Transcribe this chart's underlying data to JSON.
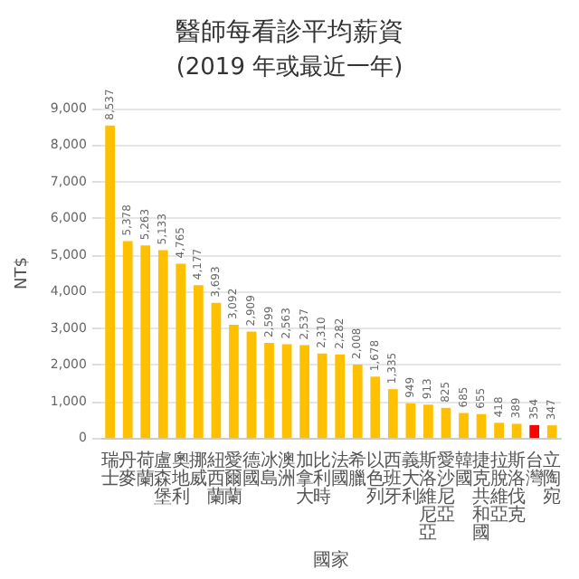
{
  "chart_data": {
    "type": "bar",
    "title": "醫師每看診平均薪資",
    "subtitle": "(2019 年或最近一年)",
    "xlabel": "國家",
    "ylabel": "NT$",
    "categories": [
      "瑞士",
      "丹麥",
      "荷蘭",
      "盧森堡",
      "奧地利",
      "挪威",
      "紐西蘭",
      "愛爾蘭",
      "德國",
      "冰島",
      "澳洲",
      "加拿大",
      "比利時",
      "法國",
      "希臘",
      "以色列",
      "西班牙",
      "義大利",
      "斯洛維尼亞",
      "愛沙尼亞",
      "韓國",
      "捷克共和國",
      "拉脫維亞",
      "斯洛伐克",
      "台灣",
      "立陶宛"
    ],
    "values": [
      8537,
      5378,
      5263,
      5133,
      4765,
      4177,
      3693,
      3092,
      2909,
      2599,
      2563,
      2537,
      2310,
      2282,
      2008,
      1678,
      1335,
      949,
      913,
      825,
      685,
      655,
      418,
      389,
      354,
      347
    ],
    "colors": [
      "#ffc000",
      "#ffc000",
      "#ffc000",
      "#ffc000",
      "#ffc000",
      "#ffc000",
      "#ffc000",
      "#ffc000",
      "#ffc000",
      "#ffc000",
      "#ffc000",
      "#ffc000",
      "#ffc000",
      "#ffc000",
      "#ffc000",
      "#ffc000",
      "#ffc000",
      "#ffc000",
      "#ffc000",
      "#ffc000",
      "#ffc000",
      "#ffc000",
      "#ffc000",
      "#ffc000",
      "#ff0000",
      "#ffc000"
    ],
    "value_labels": [
      "8,537",
      "5,378",
      "5,263",
      "5,133",
      "4,765",
      "4,177",
      "3,693",
      "3,092",
      "2,909",
      "2,599",
      "2,563",
      "2,537",
      "2,310",
      "2,282",
      "2,008",
      "1,678",
      "1,335",
      "949",
      "913",
      "825",
      "685",
      "655",
      "418",
      "389",
      "354",
      "347"
    ],
    "ylim": [
      0,
      9000
    ],
    "yticks": [
      {
        "value": 0,
        "label": "0"
      },
      {
        "value": 1000,
        "label": "1,000"
      },
      {
        "value": 2000,
        "label": "2,000"
      },
      {
        "value": 3000,
        "label": "3,000"
      },
      {
        "value": 4000,
        "label": "4,000"
      },
      {
        "value": 5000,
        "label": "5,000"
      },
      {
        "value": 6000,
        "label": "6,000"
      },
      {
        "value": 7000,
        "label": "7,000"
      },
      {
        "value": 8000,
        "label": "8,000"
      },
      {
        "value": 9000,
        "label": "9,000"
      }
    ],
    "grid": "y"
  }
}
